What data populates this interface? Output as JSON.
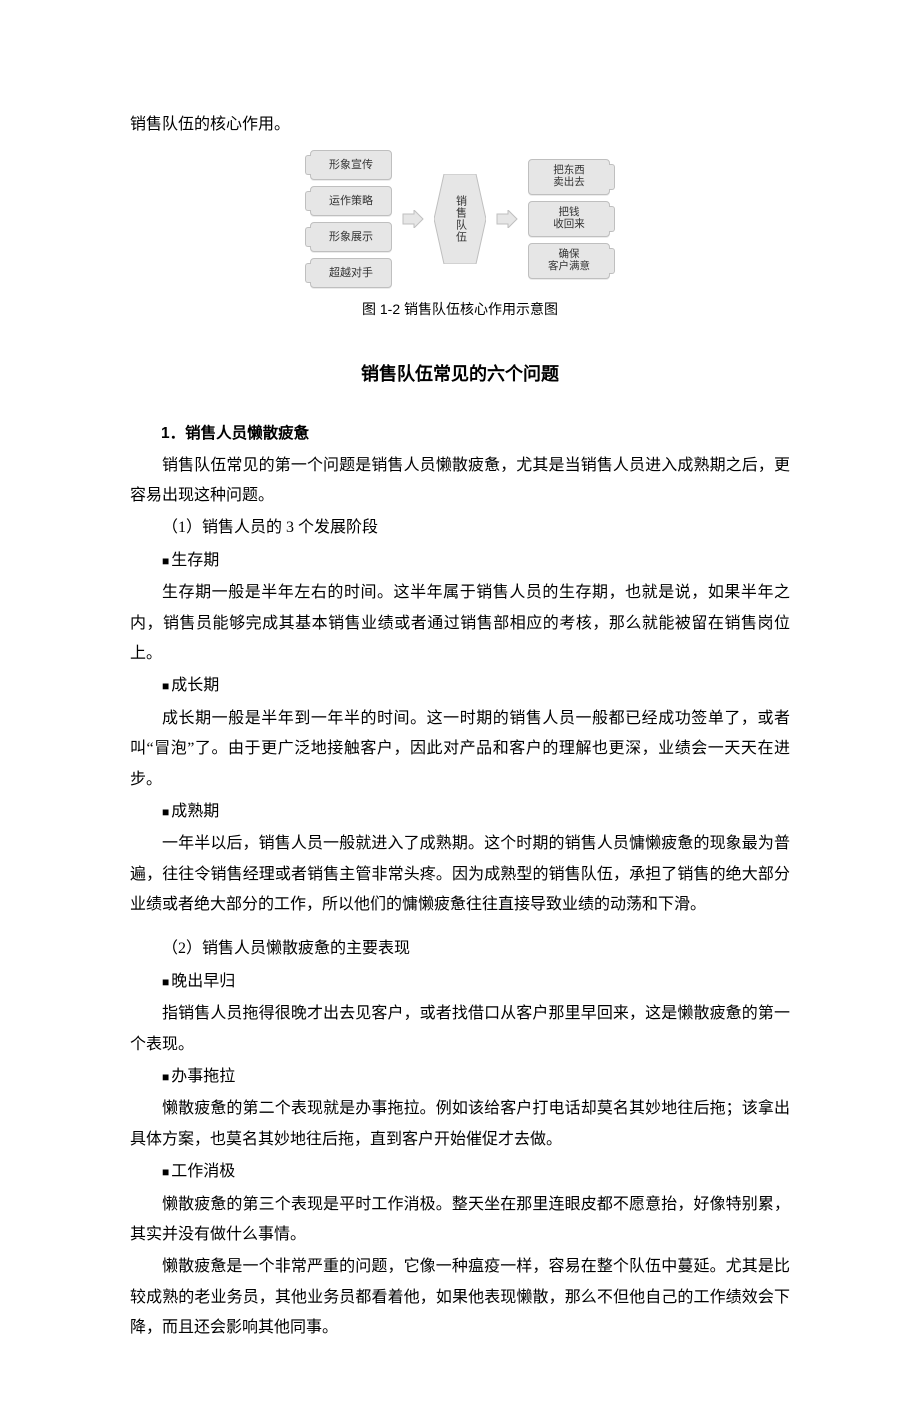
{
  "intro": "销售队伍的核心作用。",
  "diagram": {
    "left_boxes": [
      "形象宣传",
      "运作策略",
      "形象展示",
      "超越对手"
    ],
    "center": "销售队伍",
    "right_boxes": [
      "把东西\n卖出去",
      "把钱\n收回来",
      "确保\n客户满意"
    ],
    "colors": {
      "box_bg": "#e6e6e6",
      "box_border": "#bfbfbf",
      "text": "#333333"
    }
  },
  "fig_caption": "图 1-2   销售队伍核心作用示意图",
  "section_title": "销售队伍常见的六个问题",
  "topic1": {
    "heading": "1．销售人员懒散疲惫",
    "p1": "销售队伍常见的第一个问题是销售人员懒散疲惫，尤其是当销售人员进入成熟期之后，更容易出现这种问题。",
    "sub1_label": "（1）销售人员的 3 个发展阶段",
    "stage1_title": "生存期",
    "stage1_body": "生存期一般是半年左右的时间。这半年属于销售人员的生存期，也就是说，如果半年之内，销售员能够完成其基本销售业绩或者通过销售部相应的考核，那么就能被留在销售岗位上。",
    "stage2_title": "成长期",
    "stage2_body": "成长期一般是半年到一年半的时间。这一时期的销售人员一般都已经成功签单了，或者叫“冒泡”了。由于更广泛地接触客户，因此对产品和客户的理解也更深，业绩会一天天在进步。",
    "stage3_title": "成熟期",
    "stage3_body": "一年半以后，销售人员一般就进入了成熟期。这个时期的销售人员慵懒疲惫的现象最为普遍，往往令销售经理或者销售主管非常头疼。因为成熟型的销售队伍，承担了销售的绝大部分业绩或者绝大部分的工作，所以他们的慵懒疲惫往往直接导致业绩的动荡和下滑。",
    "sub2_label": "（2）销售人员懒散疲惫的主要表现",
    "sym1_title": "晚出早归",
    "sym1_body": "指销售人员拖得很晚才出去见客户，或者找借口从客户那里早回来，这是懒散疲惫的第一个表现。",
    "sym2_title": "办事拖拉",
    "sym2_body": "懒散疲惫的第二个表现就是办事拖拉。例如该给客户打电话却莫名其妙地往后拖；该拿出具体方案，也莫名其妙地往后拖，直到客户开始催促才去做。",
    "sym3_title": "工作消极",
    "sym3_body": "懒散疲惫的第三个表现是平时工作消极。整天坐在那里连眼皮都不愿意抬，好像特别累，其实并没有做什么事情。",
    "closing": "懒散疲惫是一个非常严重的问题，它像一种瘟疫一样，容易在整个队伍中蔓延。尤其是比较成熟的老业务员，其他业务员都看着他，如果他表现懒散，那么不但他自己的工作绩效会下降，而且还会影响其他同事。"
  }
}
